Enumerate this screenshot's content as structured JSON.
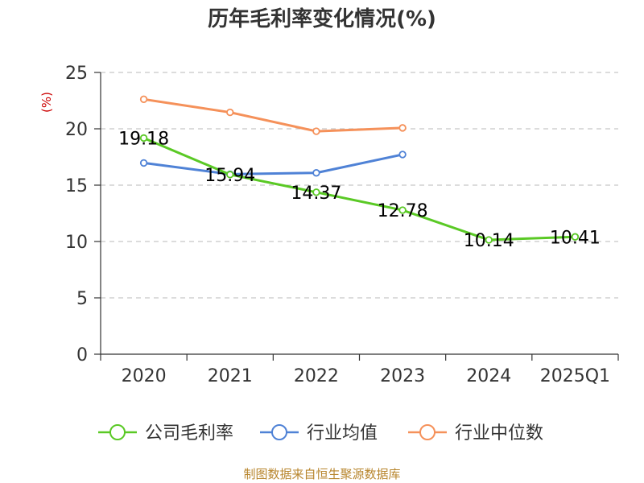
{
  "chart_data": {
    "type": "line",
    "title": "历年毛利率变化情况(%)",
    "ylabel": "(%)",
    "xlabel": "",
    "categories": [
      "2020",
      "2021",
      "2022",
      "2023",
      "2024",
      "2025Q1"
    ],
    "ylim": [
      0,
      25
    ],
    "yticks": [
      0,
      5,
      10,
      15,
      20,
      25
    ],
    "grid": true,
    "legend_position": "bottom",
    "series": [
      {
        "name": "公司毛利率",
        "color": "#5ac925",
        "values": [
          19.18,
          15.94,
          14.37,
          12.78,
          10.14,
          10.41
        ],
        "labels": [
          "19.18",
          "15.94",
          "14.37",
          "12.78",
          "10.14",
          "10.41"
        ]
      },
      {
        "name": "行业均值",
        "color": "#4f82d6",
        "values": [
          16.97,
          15.97,
          16.09,
          17.72,
          null,
          null
        ]
      },
      {
        "name": "行业中位数",
        "color": "#f5915a",
        "values": [
          22.62,
          21.46,
          19.78,
          20.08,
          null,
          null
        ]
      }
    ]
  },
  "source": "制图数据来自恒生聚源数据库"
}
